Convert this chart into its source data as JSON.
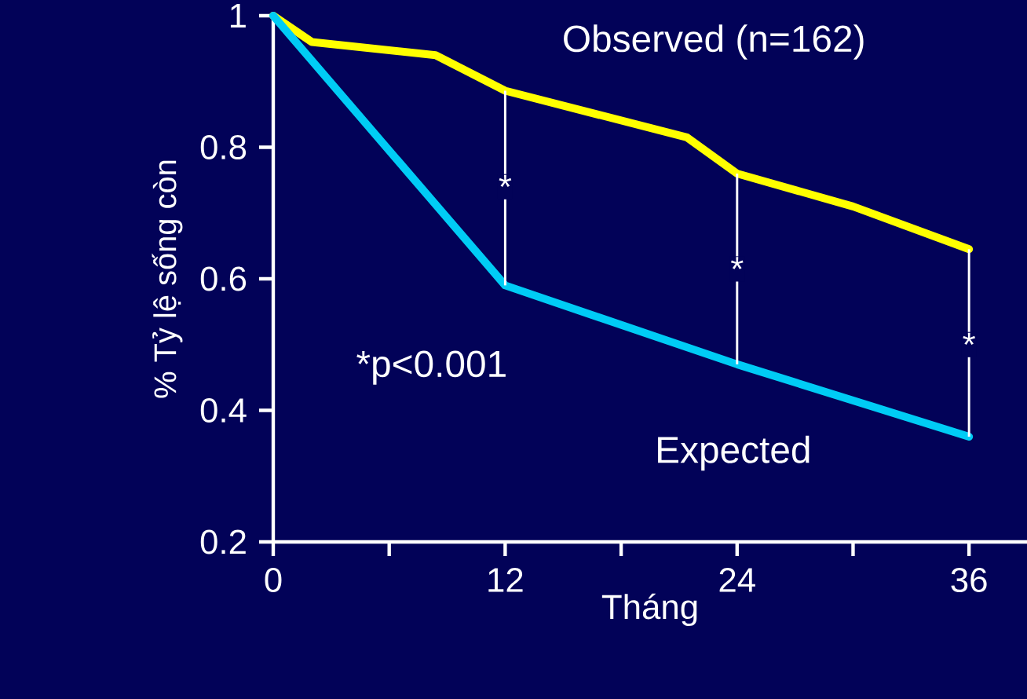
{
  "chart_data": {
    "type": "line",
    "xlabel": "Tháng",
    "ylabel": "% Tỷ lệ sống còn",
    "series": [
      {
        "name": "Observed (n=162)",
        "color": "#ffff00",
        "x": [
          0,
          2,
          8.4,
          12,
          21.4,
          24,
          30,
          36
        ],
        "values": [
          1.0,
          0.96,
          0.94,
          0.886,
          0.815,
          0.76,
          0.71,
          0.645
        ]
      },
      {
        "name": "Expected",
        "color": "#00ccf5",
        "x": [
          0,
          12,
          24,
          36
        ],
        "values": [
          1.0,
          0.59,
          0.47,
          0.36
        ]
      }
    ],
    "xlim": [
      0,
      39
    ],
    "ylim": [
      0.2,
      1
    ],
    "xticks": [
      0,
      {
        "value": 6,
        "label": null
      },
      12,
      {
        "value": 18,
        "label": null
      },
      24,
      {
        "value": 30,
        "label": null
      },
      36
    ],
    "yticks": [
      0.2,
      0.4,
      0.6,
      0.8,
      1
    ],
    "annotations": [
      {
        "text": "*",
        "x": 12,
        "y": 0.74
      },
      {
        "text": "*",
        "x": 24,
        "y": 0.615
      },
      {
        "text": "*",
        "x": 36,
        "y": 0.5
      },
      "*p<0.001"
    ],
    "grid": false,
    "legend": false,
    "marker": "none",
    "line_style": "solid"
  }
}
